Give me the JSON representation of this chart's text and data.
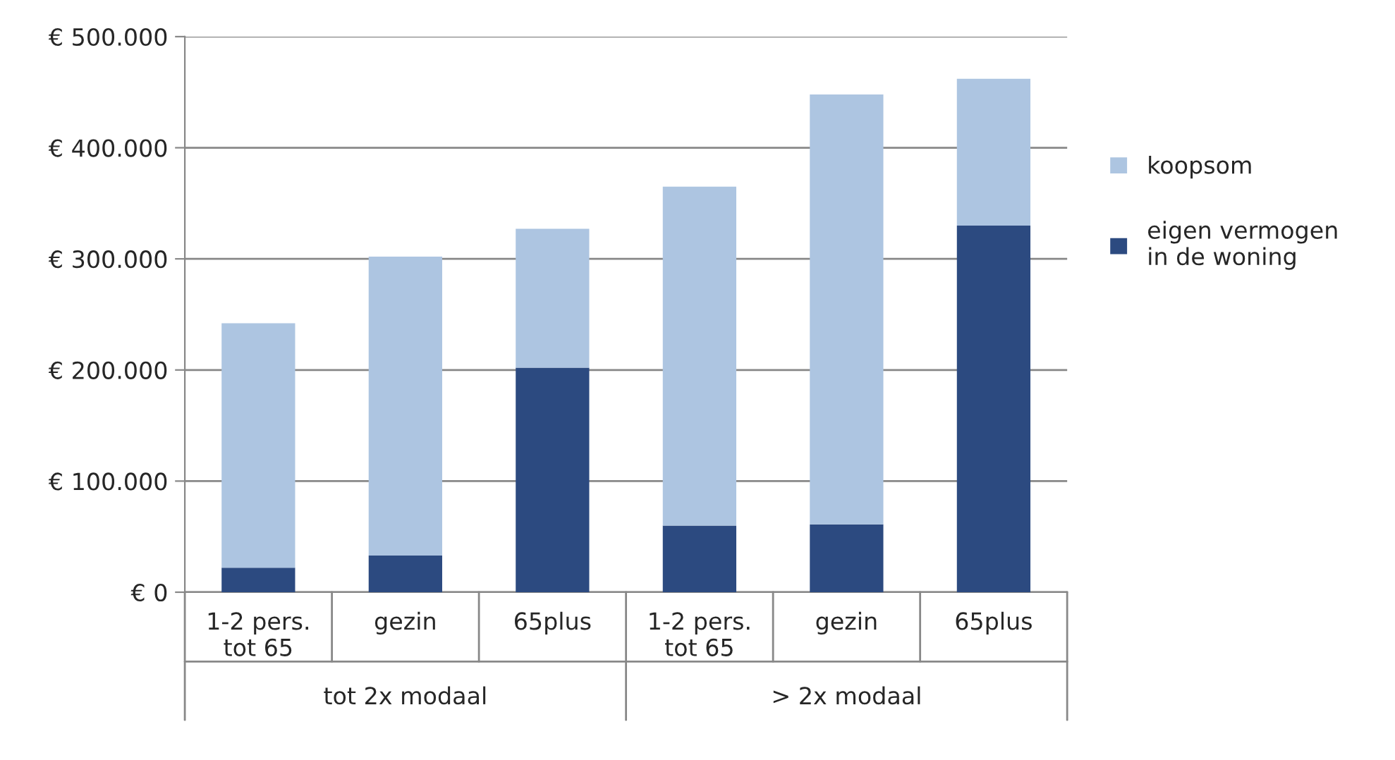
{
  "chart_data": {
    "type": "bar",
    "stacked": true,
    "categories": [
      "1-2 pers.\ntot 65",
      "gezin",
      "65plus",
      "1-2 pers.\ntot 65",
      "gezin",
      "65plus"
    ],
    "series": [
      {
        "name": "eigen vermogen\nin de woning",
        "color": "#2c4a80",
        "values": [
          22000,
          33000,
          202000,
          60000,
          61000,
          330000
        ]
      },
      {
        "name": "koopsom",
        "color": "#adc5e1",
        "values": [
          220000,
          269000,
          125000,
          305000,
          387000,
          132000
        ]
      }
    ],
    "annotations": [
      "tot 2x modaal",
      "> 2x modaal"
    ],
    "ylim": [
      0,
      500000
    ],
    "yticks": [
      {
        "value": 0,
        "label": "€ 0"
      },
      {
        "value": 100000,
        "label": "€ 100.000"
      },
      {
        "value": 200000,
        "label": "€ 200.000"
      },
      {
        "value": 300000,
        "label": "€ 300.000"
      },
      {
        "value": 400000,
        "label": "€ 400.000"
      },
      {
        "value": 500000,
        "label": "€ 500.000"
      }
    ],
    "grid": "y",
    "legend": "right"
  }
}
